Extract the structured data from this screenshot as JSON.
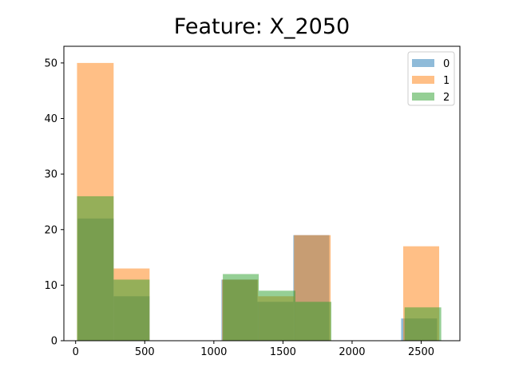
{
  "chart_data": {
    "type": "bar",
    "title": "Feature: X_2050",
    "xlabel": "",
    "ylabel": "",
    "xlim": [
      -85,
      2780
    ],
    "ylim": [
      0,
      53
    ],
    "xticks": [
      0,
      500,
      1000,
      1500,
      2000,
      2500
    ],
    "yticks": [
      0,
      10,
      20,
      30,
      40,
      50
    ],
    "legend_position": "top-right",
    "series": [
      {
        "name": "0",
        "color": "#1f77b4",
        "bins": [
          {
            "x0": 15,
            "x1": 275,
            "value": 22
          },
          {
            "x0": 275,
            "x1": 535,
            "value": 8
          },
          {
            "x0": 1055,
            "x1": 1315,
            "value": 11
          },
          {
            "x0": 1315,
            "x1": 1575,
            "value": 7
          },
          {
            "x0": 1575,
            "x1": 1835,
            "value": 19
          },
          {
            "x0": 2355,
            "x1": 2615,
            "value": 4
          }
        ]
      },
      {
        "name": "1",
        "color": "#ff7f0e",
        "bins": [
          {
            "x0": 10,
            "x1": 275,
            "value": 50
          },
          {
            "x0": 275,
            "x1": 535,
            "value": 13
          },
          {
            "x0": 1060,
            "x1": 1320,
            "value": 11
          },
          {
            "x0": 1320,
            "x1": 1580,
            "value": 8
          },
          {
            "x0": 1580,
            "x1": 1845,
            "value": 19
          },
          {
            "x0": 2370,
            "x1": 2630,
            "value": 17
          }
        ]
      },
      {
        "name": "2",
        "color": "#2ca02c",
        "bins": [
          {
            "x0": 10,
            "x1": 275,
            "value": 26
          },
          {
            "x0": 275,
            "x1": 535,
            "value": 11
          },
          {
            "x0": 1065,
            "x1": 1325,
            "value": 12
          },
          {
            "x0": 1325,
            "x1": 1590,
            "value": 9
          },
          {
            "x0": 1590,
            "x1": 1850,
            "value": 7
          },
          {
            "x0": 2380,
            "x1": 2645,
            "value": 6
          }
        ]
      }
    ]
  }
}
